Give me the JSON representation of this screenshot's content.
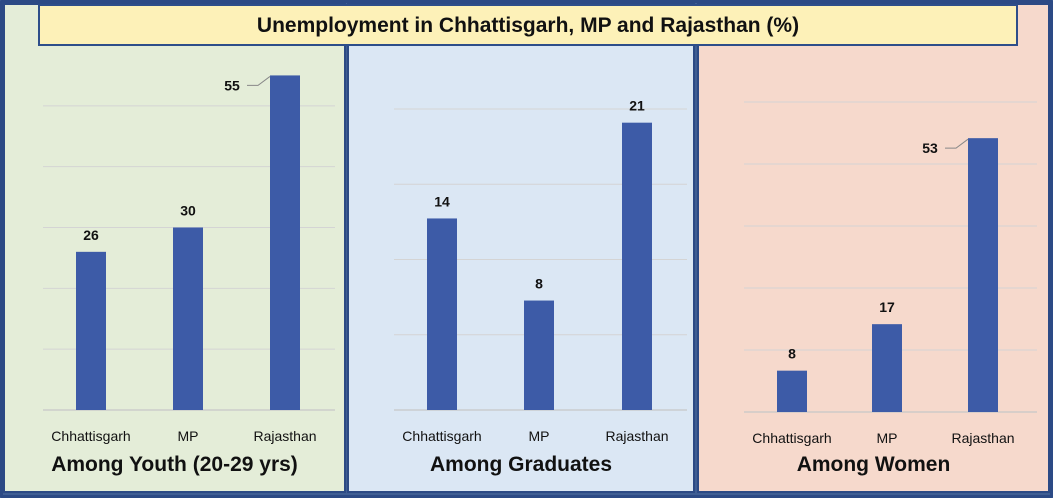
{
  "title": "Unemployment in Chhattisgarh, MP and Rajasthan (%)",
  "colors": {
    "bar": "#3d5ba7",
    "panel_youth": "#e4edd8",
    "panel_graduates": "#dbe7f4",
    "panel_women": "#f6d9cc",
    "title_bg": "#fdf1b8"
  },
  "chart_data": [
    {
      "type": "bar",
      "title": "Among Youth (20-29 yrs)",
      "categories": [
        "Chhattisgarh",
        "MP",
        "Rajasthan"
      ],
      "values": [
        26,
        30,
        55
      ],
      "ylim": [
        0,
        60
      ],
      "grid": true,
      "xlabel": "",
      "ylabel": ""
    },
    {
      "type": "bar",
      "title": "Among Graduates",
      "categories": [
        "Chhattisgarh",
        "MP",
        "Rajasthan"
      ],
      "values": [
        14,
        8,
        21
      ],
      "ylim": [
        0,
        22
      ],
      "grid": true,
      "xlabel": "",
      "ylabel": ""
    },
    {
      "type": "bar",
      "title": "Among Women",
      "categories": [
        "Chhattisgarh",
        "MP",
        "Rajasthan"
      ],
      "values": [
        8,
        17,
        53
      ],
      "ylim": [
        0,
        60
      ],
      "grid": true,
      "xlabel": "",
      "ylabel": ""
    }
  ]
}
